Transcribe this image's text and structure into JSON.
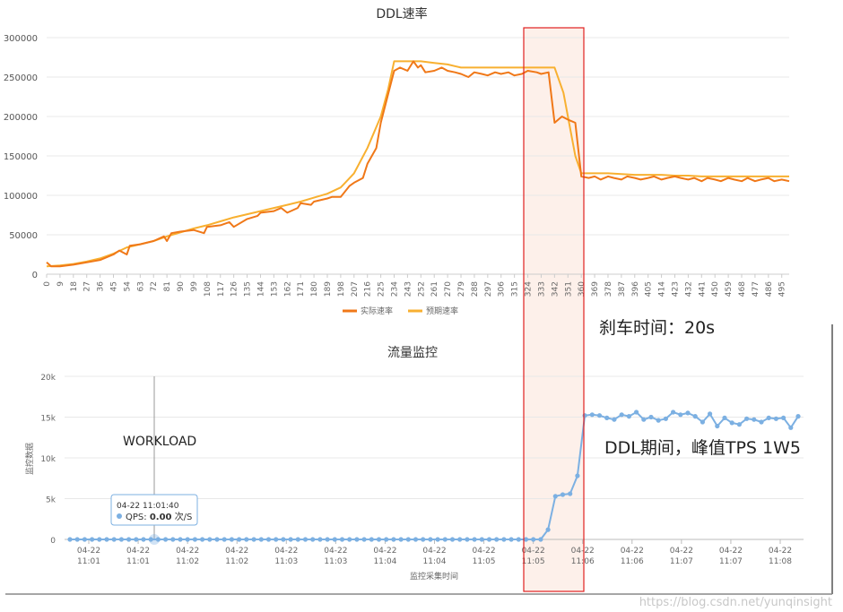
{
  "chart_data": [
    {
      "type": "line",
      "title": "DDL速率",
      "ylim": [
        0,
        300000
      ],
      "yticks": [
        "300000",
        "250000",
        "200000",
        "150000",
        "100000",
        "50000",
        "0"
      ],
      "x_ticks": [
        "0",
        "9",
        "18",
        "27",
        "36",
        "45",
        "54",
        "63",
        "72",
        "81",
        "90",
        "99",
        "108",
        "117",
        "126",
        "135",
        "144",
        "153",
        "162",
        "171",
        "180",
        "189",
        "198",
        "207",
        "216",
        "225",
        "234",
        "243",
        "252",
        "261",
        "270",
        "279",
        "288",
        "297",
        "306",
        "315",
        "324",
        "333",
        "342",
        "351",
        "360",
        "369",
        "378",
        "387",
        "396",
        "405",
        "414",
        "423",
        "432",
        "441",
        "450",
        "459",
        "468",
        "477",
        "486",
        "495"
      ],
      "xlim": [
        0,
        500
      ],
      "grid": true,
      "legend": "bottom",
      "series": [
        {
          "name": "实际速率",
          "color": "#f07818",
          "x": [
            0,
            3,
            9,
            18,
            27,
            36,
            45,
            49,
            54,
            56,
            63,
            72,
            79,
            81,
            84,
            90,
            99,
            106,
            108,
            117,
            123,
            126,
            135,
            142,
            144,
            153,
            158,
            162,
            169,
            171,
            178,
            180,
            189,
            192,
            198,
            204,
            207,
            213,
            216,
            222,
            225,
            234,
            238,
            243,
            247,
            250,
            252,
            255,
            261,
            266,
            270,
            275,
            279,
            284,
            288,
            293,
            297,
            302,
            306,
            311,
            315,
            320,
            324,
            330,
            333,
            338,
            342,
            347,
            351,
            356,
            360,
            365,
            369,
            373,
            378,
            382,
            387,
            391,
            396,
            400,
            405,
            409,
            414,
            418,
            423,
            427,
            432,
            436,
            441,
            445,
            450,
            454,
            459,
            463,
            468,
            472,
            477,
            481,
            486,
            490,
            495,
            500
          ],
          "values": [
            15000,
            10000,
            10000,
            12000,
            15000,
            18000,
            25000,
            30000,
            25000,
            36000,
            38000,
            42000,
            48000,
            42000,
            52000,
            54000,
            56000,
            52000,
            60000,
            62000,
            66000,
            60000,
            70000,
            74000,
            78000,
            80000,
            84000,
            78000,
            84000,
            90000,
            88000,
            92000,
            96000,
            98000,
            98000,
            112000,
            116000,
            122000,
            140000,
            160000,
            192000,
            258000,
            262000,
            258000,
            270000,
            262000,
            265000,
            256000,
            258000,
            262000,
            258000,
            256000,
            254000,
            250000,
            256000,
            254000,
            252000,
            256000,
            254000,
            256000,
            252000,
            254000,
            258000,
            256000,
            254000,
            256000,
            192000,
            200000,
            196000,
            192000,
            124000,
            122000,
            124000,
            120000,
            124000,
            122000,
            120000,
            124000,
            122000,
            120000,
            122000,
            124000,
            120000,
            122000,
            124000,
            122000,
            120000,
            122000,
            118000,
            122000,
            120000,
            118000,
            122000,
            120000,
            118000,
            122000,
            118000,
            120000,
            122000,
            118000,
            120000,
            118000
          ]
        },
        {
          "name": "预期速率",
          "color": "#f8b030",
          "x": [
            0,
            9,
            18,
            27,
            36,
            45,
            54,
            63,
            72,
            81,
            90,
            99,
            108,
            117,
            126,
            135,
            144,
            153,
            162,
            171,
            180,
            189,
            198,
            207,
            216,
            225,
            230,
            234,
            243,
            252,
            261,
            270,
            279,
            288,
            297,
            306,
            315,
            324,
            333,
            342,
            348,
            352,
            356,
            360,
            369,
            378,
            387,
            396,
            405,
            414,
            423,
            432,
            441,
            450,
            459,
            468,
            477,
            486,
            495,
            500
          ],
          "values": [
            10000,
            11000,
            13000,
            16000,
            20000,
            26000,
            34000,
            38000,
            42000,
            48000,
            53000,
            58000,
            62000,
            67000,
            72000,
            76000,
            80000,
            84000,
            88000,
            92000,
            97000,
            102000,
            110000,
            128000,
            160000,
            200000,
            235000,
            270000,
            270000,
            270000,
            268000,
            266000,
            262000,
            262000,
            262000,
            262000,
            262000,
            262000,
            262000,
            262000,
            230000,
            190000,
            150000,
            128000,
            128000,
            128000,
            127000,
            126000,
            126000,
            126000,
            125000,
            125000,
            124000,
            124000,
            124000,
            124000,
            124000,
            124000,
            124000,
            124000
          ]
        }
      ]
    },
    {
      "type": "line",
      "title": "流量监控",
      "ylabel": "监控数据",
      "xlabel": "监控采集时间",
      "ylim": [
        0,
        20000
      ],
      "yticks": [
        "20k",
        "15k",
        "10k",
        "5k",
        "0"
      ],
      "x_ticks": [
        {
          "date": "04-22",
          "time": "11:01"
        },
        {
          "date": "04-22",
          "time": "11:01"
        },
        {
          "date": "04-22",
          "time": "11:02"
        },
        {
          "date": "04-22",
          "time": "11:02"
        },
        {
          "date": "04-22",
          "time": "11:03"
        },
        {
          "date": "04-22",
          "time": "11:03"
        },
        {
          "date": "04-22",
          "time": "11:04"
        },
        {
          "date": "04-22",
          "time": "11:04"
        },
        {
          "date": "04-22",
          "time": "11:05"
        },
        {
          "date": "04-22",
          "time": "11:05"
        },
        {
          "date": "04-22",
          "time": "11:06"
        },
        {
          "date": "04-22",
          "time": "11:06"
        },
        {
          "date": "04-22",
          "time": "11:07"
        },
        {
          "date": "04-22",
          "time": "11:07"
        },
        {
          "date": "04-22",
          "time": "11:08"
        }
      ],
      "grid": true,
      "series": [
        {
          "name": "QPS",
          "color": "#7cb0e2",
          "values": [
            0,
            0,
            0,
            0,
            0,
            0,
            0,
            0,
            0,
            0,
            0,
            0,
            0,
            0,
            0,
            0,
            0,
            0,
            0,
            0,
            0,
            0,
            0,
            0,
            0,
            0,
            0,
            0,
            0,
            0,
            0,
            0,
            0,
            0,
            0,
            0,
            0,
            0,
            0,
            0,
            0,
            0,
            0,
            0,
            0,
            0,
            0,
            0,
            0,
            0,
            0,
            0,
            0,
            0,
            0,
            0,
            0,
            0,
            0,
            0,
            0,
            0,
            0,
            0,
            0,
            1200,
            5300,
            5500,
            5600,
            7800,
            15200,
            15300,
            15200,
            14900,
            14700,
            15300,
            15100,
            15600,
            14700,
            15000,
            14600,
            14800,
            15600,
            15300,
            15500,
            15100,
            14400,
            15400,
            13900,
            14900,
            14300,
            14100,
            14800,
            14700,
            14400,
            14900,
            14800,
            14900,
            13700,
            15100
          ]
        }
      ],
      "tooltip": {
        "time": "04-22 11:01:40",
        "series": "QPS:",
        "value": "0.00",
        "unit": "次/S"
      }
    }
  ],
  "annotations": {
    "brake": "刹车时间：20s",
    "tps": "DDL期间，峰值TPS 1W5",
    "workload": "WORKLOAD"
  },
  "highlight": {
    "fill": "#fdf0ea",
    "stroke": "#e02020"
  },
  "watermark": "https://blog.csdn.net/yunqinsight"
}
